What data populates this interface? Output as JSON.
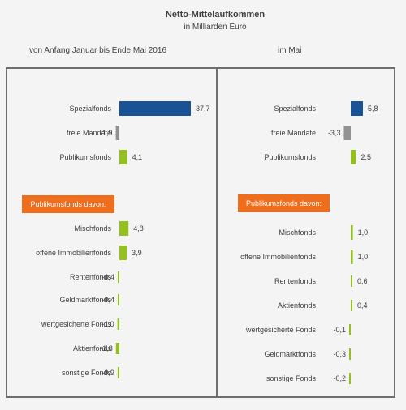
{
  "header": {
    "title": "Netto-Mittelaufkommen",
    "subtitle": "in Milliarden Euro",
    "left_period": "von  Anfang Januar  bis Ende Mai 2016",
    "right_period": "im Mai"
  },
  "colors": {
    "spezialfonds": "#1a5296",
    "freie_mandate": "#929292",
    "publikumsfonds": "#93c01f",
    "section_label_bg": "#ee6e1e"
  },
  "chart_data": [
    {
      "type": "bar",
      "orientation": "horizontal",
      "title": "von  Anfang Januar  bis Ende Mai 2016",
      "section_label": "Publikumsfonds davon:",
      "categories": [
        "Spezialfonds",
        "freie Mandate",
        "Publikumsfonds",
        "Mischfonds",
        "offene Immobilienfonds",
        "Rentenfonds",
        "Geldmarktfonds",
        "wertgesicherte Fonds",
        "Aktienfonds",
        "sonstige Fonds"
      ],
      "values": [
        37.7,
        -1.9,
        4.1,
        4.8,
        3.9,
        -0.4,
        -0.4,
        -1.0,
        -1.8,
        -0.9
      ],
      "value_labels": [
        "37,7",
        "-1,9",
        "4,1",
        "4,8",
        "3,9",
        "-0,4",
        "-0,4",
        "-1,0",
        "-1,8",
        "-0,9"
      ],
      "groups": [
        "spezialfonds",
        "freie_mandate",
        "publikumsfonds",
        "publikumsfonds",
        "publikumsfonds",
        "publikumsfonds",
        "publikumsfonds",
        "publikumsfonds",
        "publikumsfonds",
        "publikumsfonds"
      ],
      "grid": false
    },
    {
      "type": "bar",
      "orientation": "horizontal",
      "title": "im Mai",
      "section_label": "Publikumsfonds davon:",
      "categories": [
        "Spezialfonds",
        "freie Mandate",
        "Publikumsfonds",
        "Mischfonds",
        "offene Immobilienfonds",
        "Rentenfonds",
        "Aktienfonds",
        "wertgesicherte Fonds",
        "Geldmarktfonds",
        "sonstige Fonds"
      ],
      "values": [
        5.8,
        -3.3,
        2.5,
        1.0,
        1.0,
        0.6,
        0.4,
        -0.1,
        -0.3,
        -0.2
      ],
      "value_labels": [
        "5,8",
        "-3,3",
        "2,5",
        "1,0",
        "1,0",
        "0,6",
        "0,4",
        "-0,1",
        "-0,3",
        "-0,2"
      ],
      "groups": [
        "spezialfonds",
        "freie_mandate",
        "publikumsfonds",
        "publikumsfonds",
        "publikumsfonds",
        "publikumsfonds",
        "publikumsfonds",
        "publikumsfonds",
        "publikumsfonds",
        "publikumsfonds"
      ],
      "grid": false
    }
  ]
}
